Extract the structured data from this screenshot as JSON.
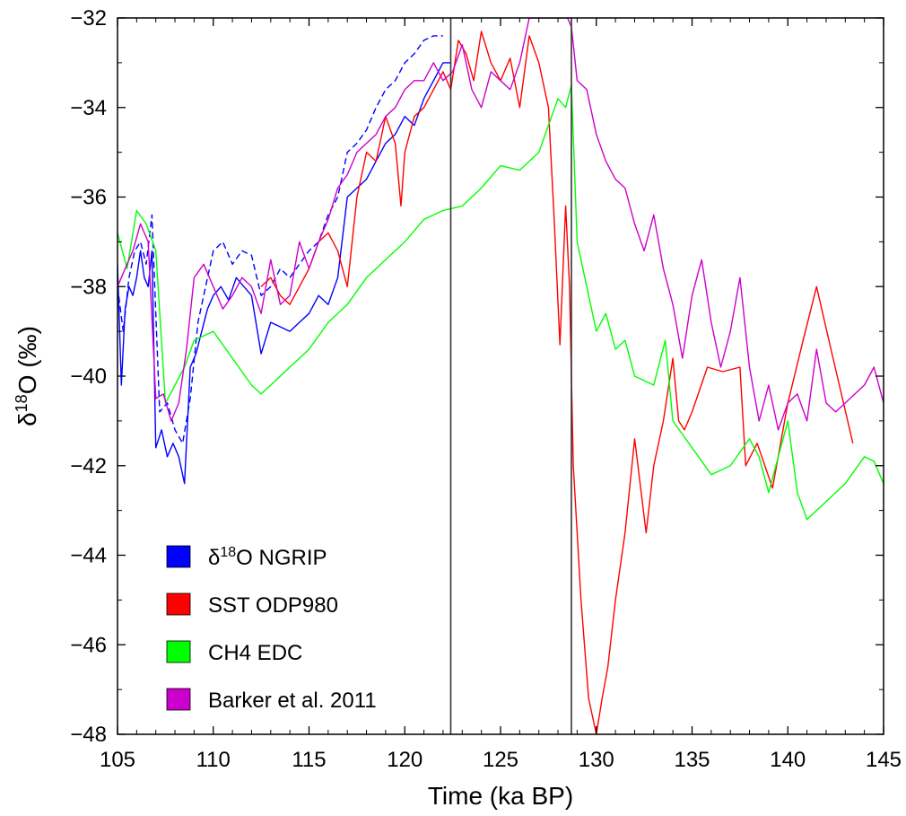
{
  "chart_data": {
    "type": "line",
    "xlabel": "Time (ka BP)",
    "ylabel_prefix": "δ",
    "ylabel_sup": "18",
    "ylabel_suffix": "O (‰)",
    "xlim": [
      105,
      145
    ],
    "ylim": [
      -48,
      -32
    ],
    "x_ticks": [
      105,
      110,
      115,
      120,
      125,
      130,
      135,
      140,
      145
    ],
    "y_ticks": [
      -48,
      -46,
      -44,
      -42,
      -40,
      -38,
      -36,
      -34,
      -32
    ],
    "x_tick_labels": [
      "105",
      "110",
      "115",
      "120",
      "125",
      "130",
      "135",
      "140",
      "145"
    ],
    "y_tick_labels": [
      "−48",
      "−46",
      "−44",
      "−42",
      "−40",
      "−38",
      "−36",
      "−34",
      "−32"
    ],
    "vertical_lines": [
      122.4,
      128.7
    ],
    "legend": {
      "placement": "bottom-left",
      "items": [
        {
          "prefix": "δ",
          "sup": "18",
          "rest": "O NGRIP",
          "color": "#0000ff"
        },
        {
          "prefix": "",
          "sup": "",
          "rest": "SST ODP980",
          "color": "#ff0000"
        },
        {
          "prefix": "",
          "sup": "",
          "rest": "CH4 EDC",
          "color": "#00ff00"
        },
        {
          "prefix": "",
          "sup": "",
          "rest": "Barker et al. 2011",
          "color": "#cc00cc"
        }
      ]
    },
    "series": [
      {
        "key": "ngrip",
        "color": "#0000ff",
        "dash": false,
        "x": [
          105.0,
          105.2,
          105.4,
          105.6,
          105.8,
          106.0,
          106.2,
          106.4,
          106.6,
          106.8,
          107.0,
          107.3,
          107.6,
          107.9,
          108.2,
          108.5,
          108.8,
          109.1,
          109.4,
          109.7,
          110.0,
          110.4,
          110.8,
          111.2,
          111.6,
          112.0,
          112.5,
          113.0,
          113.5,
          114.0,
          114.5,
          115.0,
          115.5,
          116.0,
          116.5,
          117.0,
          117.5,
          118.0,
          118.5,
          119.0,
          119.5,
          120.0,
          120.5,
          121.0,
          121.5,
          122.0,
          122.4
        ],
        "y": [
          -37.5,
          -40.2,
          -38.5,
          -38.0,
          -38.2,
          -37.8,
          -37.2,
          -37.8,
          -38.0,
          -37.2,
          -41.6,
          -41.2,
          -41.8,
          -41.5,
          -41.8,
          -42.4,
          -39.8,
          -39.5,
          -39.0,
          -38.5,
          -38.2,
          -38.0,
          -38.3,
          -37.8,
          -38.0,
          -38.2,
          -39.5,
          -38.8,
          -38.9,
          -39.0,
          -38.8,
          -38.6,
          -38.2,
          -38.4,
          -37.8,
          -36.0,
          -35.8,
          -35.6,
          -35.2,
          -34.8,
          -34.6,
          -34.2,
          -34.4,
          -33.8,
          -33.4,
          -33.0,
          -33.0
        ]
      },
      {
        "key": "ngrip_dashed",
        "color": "#0000ff",
        "dash": true,
        "x": [
          105.0,
          105.3,
          105.6,
          105.9,
          106.2,
          106.5,
          106.8,
          107.2,
          107.6,
          108.0,
          108.4,
          108.8,
          109.2,
          109.6,
          110.0,
          110.5,
          111.0,
          111.5,
          112.0,
          112.5,
          113.0,
          113.5,
          114.0,
          114.5,
          115.0,
          115.5,
          116.0,
          116.5,
          117.0,
          117.5,
          118.0,
          118.5,
          119.0,
          119.5,
          120.0,
          120.5,
          121.0,
          121.5,
          122.0
        ],
        "y": [
          -38.0,
          -39.0,
          -37.8,
          -37.2,
          -37.0,
          -37.5,
          -36.4,
          -40.8,
          -40.6,
          -41.2,
          -41.5,
          -40.5,
          -38.8,
          -38.0,
          -37.2,
          -37.0,
          -37.5,
          -37.2,
          -37.3,
          -38.2,
          -38.0,
          -37.6,
          -37.8,
          -37.5,
          -37.2,
          -37.0,
          -36.4,
          -36.0,
          -35.0,
          -34.8,
          -34.5,
          -34.0,
          -33.6,
          -33.4,
          -33.0,
          -32.8,
          -32.5,
          -32.4,
          -32.4
        ]
      },
      {
        "key": "sst",
        "color": "#ff0000",
        "dash": false,
        "x": [
          112.5,
          113.0,
          113.5,
          114.0,
          114.5,
          115.0,
          115.5,
          116.0,
          116.5,
          117.0,
          117.5,
          118.0,
          118.5,
          119.0,
          119.5,
          119.8,
          120.0,
          120.5,
          121.0,
          121.5,
          122.0,
          122.4,
          122.8,
          123.2,
          123.6,
          124.0,
          124.5,
          125.0,
          125.5,
          126.0,
          126.5,
          127.0,
          127.5,
          127.8,
          128.1,
          128.4,
          128.6,
          128.8,
          129.2,
          129.6,
          130.0,
          130.3,
          130.6,
          131.0,
          131.5,
          132.0,
          132.6,
          133.0,
          133.5,
          134.0,
          134.3,
          134.6,
          135.0,
          135.8,
          136.6,
          137.5,
          137.8,
          138.4,
          139.2,
          140.0,
          140.8,
          141.5,
          142.2,
          143.4
        ],
        "y": [
          -38.0,
          -37.8,
          -38.2,
          -38.4,
          -38.0,
          -37.6,
          -37.0,
          -36.8,
          -37.2,
          -38.0,
          -36.0,
          -35.0,
          -35.2,
          -34.2,
          -34.8,
          -36.2,
          -35.0,
          -34.2,
          -34.0,
          -33.6,
          -33.2,
          -33.6,
          -32.5,
          -32.8,
          -33.4,
          -32.3,
          -33.0,
          -33.4,
          -32.9,
          -34.0,
          -32.4,
          -33.0,
          -34.0,
          -36.5,
          -39.3,
          -36.2,
          -38.0,
          -42.0,
          -45.0,
          -47.2,
          -48.0,
          -47.2,
          -46.5,
          -45.0,
          -43.5,
          -41.4,
          -43.5,
          -42.0,
          -41.0,
          -39.6,
          -41.0,
          -41.2,
          -40.8,
          -39.8,
          -39.9,
          -39.8,
          -42.0,
          -41.5,
          -42.5,
          -40.6,
          -39.2,
          -38.0,
          -39.3,
          -41.5
        ]
      },
      {
        "key": "ch4",
        "color": "#00ff00",
        "dash": false,
        "x": [
          105.0,
          105.5,
          106.0,
          106.5,
          107.0,
          107.5,
          108.0,
          108.5,
          109.0,
          110.0,
          111.0,
          112.0,
          112.5,
          113.0,
          113.5,
          114.0,
          115.0,
          116.0,
          117.0,
          118.0,
          119.0,
          120.0,
          121.0,
          122.0,
          123.0,
          124.0,
          125.0,
          126.0,
          127.0,
          127.5,
          128.0,
          128.4,
          128.7,
          129.0,
          129.5,
          130.0,
          130.5,
          131.0,
          131.5,
          132.0,
          133.0,
          133.6,
          134.0,
          135.0,
          136.0,
          137.0,
          138.0,
          138.5,
          139.0,
          139.5,
          140.0,
          140.5,
          141.0,
          142.0,
          143.0,
          144.0,
          144.5,
          145.0
        ],
        "y": [
          -36.8,
          -37.6,
          -36.3,
          -36.6,
          -37.2,
          -40.6,
          -40.2,
          -39.8,
          -39.2,
          -39.0,
          -39.6,
          -40.2,
          -40.4,
          -40.2,
          -40.0,
          -39.8,
          -39.4,
          -38.8,
          -38.4,
          -37.8,
          -37.4,
          -37.0,
          -36.5,
          -36.3,
          -36.2,
          -35.8,
          -35.3,
          -35.4,
          -35.0,
          -34.4,
          -33.8,
          -34.0,
          -33.5,
          -37.0,
          -38.0,
          -39.0,
          -38.6,
          -39.4,
          -39.2,
          -40.0,
          -40.2,
          -39.2,
          -41.0,
          -41.6,
          -42.2,
          -42.0,
          -41.4,
          -41.8,
          -42.6,
          -41.8,
          -41.0,
          -42.6,
          -43.2,
          -42.8,
          -42.4,
          -41.8,
          -41.9,
          -42.4
        ]
      },
      {
        "key": "barker",
        "color": "#cc00cc",
        "dash": false,
        "x": [
          105.0,
          105.4,
          105.8,
          106.2,
          106.6,
          107.0,
          107.4,
          107.8,
          108.2,
          108.6,
          109.0,
          109.5,
          110.0,
          110.5,
          111.0,
          111.5,
          112.0,
          112.5,
          113.0,
          113.5,
          114.0,
          114.5,
          115.0,
          115.5,
          116.0,
          116.5,
          117.0,
          117.5,
          118.0,
          118.5,
          119.0,
          119.5,
          120.0,
          120.5,
          121.0,
          121.5,
          122.0,
          122.5,
          123.0,
          123.5,
          124.0,
          124.5,
          125.0,
          125.5,
          126.0,
          126.5,
          127.0,
          127.5,
          128.0,
          128.5,
          128.7,
          129.0,
          129.5,
          130.0,
          130.5,
          131.0,
          131.5,
          132.0,
          132.5,
          133.0,
          133.5,
          134.0,
          134.5,
          135.0,
          135.5,
          136.0,
          136.5,
          137.0,
          137.5,
          138.0,
          138.5,
          139.0,
          139.5,
          140.0,
          140.5,
          141.0,
          141.5,
          142.0,
          142.5,
          143.0,
          143.5,
          144.0,
          144.5,
          145.0
        ],
        "y": [
          -38.0,
          -37.6,
          -37.2,
          -36.6,
          -37.0,
          -40.5,
          -40.4,
          -41.0,
          -40.6,
          -39.4,
          -37.8,
          -37.5,
          -38.0,
          -38.5,
          -38.2,
          -37.8,
          -38.0,
          -38.6,
          -37.4,
          -38.4,
          -38.2,
          -37.0,
          -37.6,
          -37.0,
          -36.5,
          -35.8,
          -35.5,
          -35.0,
          -34.8,
          -34.6,
          -34.2,
          -34.0,
          -33.6,
          -33.4,
          -33.4,
          -33.0,
          -33.4,
          -33.2,
          -32.6,
          -33.6,
          -34.0,
          -33.2,
          -33.4,
          -33.6,
          -33.0,
          -32.0,
          -32.0,
          -32.0,
          -32.0,
          -32.0,
          -32.2,
          -33.4,
          -33.6,
          -34.6,
          -35.2,
          -35.6,
          -35.8,
          -36.6,
          -37.2,
          -36.4,
          -37.6,
          -38.4,
          -39.6,
          -38.2,
          -37.4,
          -38.8,
          -39.8,
          -39.0,
          -37.8,
          -39.8,
          -41.0,
          -40.2,
          -41.2,
          -40.6,
          -40.4,
          -41.0,
          -39.4,
          -40.6,
          -40.8,
          -40.6,
          -40.4,
          -40.2,
          -39.8,
          -40.6
        ]
      }
    ]
  }
}
